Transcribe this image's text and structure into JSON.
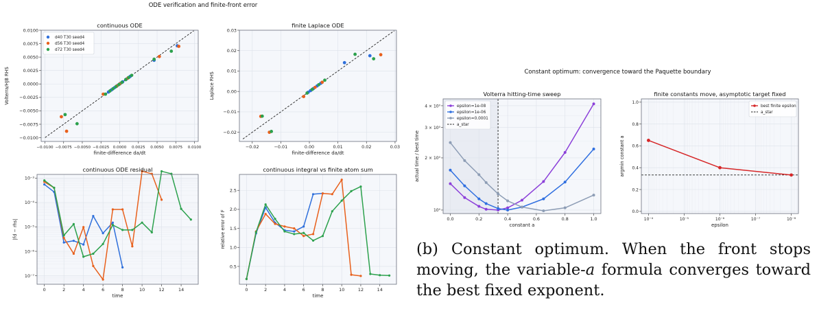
{
  "figure_a_title": "ODE verification and finite-front error",
  "figure_b_title": "Constant optimum: convergence toward the Paquette boundary",
  "caption": {
    "label": "(b)",
    "text_before_var": "Constant optimum. When the front stops moving, the variable-",
    "var": "a",
    "text_after_var": " formula converges toward the best fixed exponent."
  },
  "colors": {
    "blue": "#2e6fdb",
    "orange": "#e8601c",
    "green": "#2ca14d",
    "purple": "#8b3fd9",
    "blue2": "#2f6fe0",
    "gray": "#8d9db5",
    "red": "#d62728",
    "dashed": "#222222"
  },
  "chart_data": [
    {
      "id": "continuous-ode",
      "type": "scatter",
      "title": "continuous ODE",
      "xlabel": "finite-difference da/dt",
      "ylabel": "Volterra/HJB RHS",
      "xlim": [
        -0.0105,
        0.0105
      ],
      "ylim": [
        -0.0107,
        0.01
      ],
      "xticks": [
        -0.01,
        -0.0075,
        -0.005,
        -0.0025,
        0.0,
        0.0025,
        0.005,
        0.0075,
        0.01
      ],
      "xtick_labels": [
        "−0.0100",
        "−0.0075",
        "−0.0050",
        "−0.0025",
        "0.0000",
        "0.0025",
        "0.0050",
        "0.0075",
        "0.0100"
      ],
      "yticks": [
        -0.01,
        -0.0075,
        -0.005,
        -0.0025,
        0.0,
        0.0025,
        0.005,
        0.0075,
        0.01
      ],
      "ytick_labels": [
        "−0.0100",
        "−0.0075",
        "−0.0050",
        "−0.0025",
        "0.0000",
        "0.0025",
        "0.0050",
        "0.0075",
        "0.0100"
      ],
      "reference_line": "y = x",
      "legend": "top-left",
      "series": [
        {
          "name": "d40 T30 seed4",
          "color": "blue",
          "points": [
            [
              0.0077,
              0.0071
            ],
            [
              0.0046,
              0.0044
            ],
            [
              0.0014,
              0.0014
            ],
            [
              0.0009,
              0.0009
            ],
            [
              0.0004,
              0.0004
            ],
            [
              0.0001,
              0.0001
            ],
            [
              -0.0003,
              -0.0003
            ],
            [
              -0.0007,
              -0.0007
            ],
            [
              -0.0011,
              -0.0011
            ],
            [
              -0.0015,
              -0.0015
            ]
          ]
        },
        {
          "name": "d56 T30 seed4",
          "color": "orange",
          "points": [
            [
              0.0079,
              0.007
            ],
            [
              0.0053,
              0.0051
            ],
            [
              -0.0078,
              -0.0061
            ],
            [
              -0.0071,
              -0.0088
            ],
            [
              -0.0022,
              -0.0019
            ],
            [
              0.0011,
              0.0011
            ],
            [
              -0.0004,
              -0.0004
            ],
            [
              0.0,
              0.0
            ]
          ]
        },
        {
          "name": "d72 T30 seed4",
          "color": "green",
          "points": [
            [
              0.0069,
              0.0061
            ],
            [
              0.0046,
              0.0046
            ],
            [
              -0.0073,
              -0.0057
            ],
            [
              -0.0057,
              -0.0074
            ],
            [
              0.0016,
              0.0016
            ],
            [
              0.0012,
              0.0012
            ],
            [
              0.0008,
              0.0008
            ],
            [
              0.0003,
              0.0003
            ],
            [
              -0.0001,
              -0.0001
            ],
            [
              -0.0005,
              -0.0005
            ],
            [
              -0.0009,
              -0.0009
            ],
            [
              -0.0013,
              -0.0013
            ],
            [
              -0.0019,
              -0.0019
            ]
          ]
        }
      ]
    },
    {
      "id": "finite-laplace-ode",
      "type": "scatter",
      "title": "finite Laplace ODE",
      "xlabel": "finite-difference da/dt",
      "ylabel": "Laplace RHS",
      "xlim": [
        -0.0245,
        0.0305
      ],
      "ylim": [
        -0.0245,
        0.03
      ],
      "xticks": [
        -0.02,
        -0.01,
        0.0,
        0.01,
        0.02,
        0.03
      ],
      "xtick_labels": [
        "−0.02",
        "−0.01",
        "0.00",
        "0.01",
        "0.02",
        "0.03"
      ],
      "yticks": [
        -0.02,
        -0.01,
        0.0,
        0.01,
        0.02,
        0.03
      ],
      "ytick_labels": [
        "−0.02",
        "−0.01",
        "0.00",
        "0.01",
        "0.02",
        "0.03"
      ],
      "reference_line": "y = x",
      "series": [
        {
          "name": "d40 T30 seed4",
          "color": "blue",
          "points": [
            [
              0.0212,
              0.0175
            ],
            [
              0.0123,
              0.0141
            ],
            [
              0.004,
              0.004
            ],
            [
              0.0027,
              0.0027
            ],
            [
              0.0014,
              0.0014
            ],
            [
              0.0004,
              0.0004
            ],
            [
              -0.0004,
              -0.0004
            ]
          ]
        },
        {
          "name": "d56 T30 seed4",
          "color": "orange",
          "points": [
            [
              0.025,
              0.018
            ],
            [
              -0.017,
              -0.0122
            ],
            [
              -0.014,
              -0.02
            ],
            [
              -0.002,
              -0.0025
            ],
            [
              0.002,
              0.002
            ],
            [
              0.0045,
              0.0045
            ]
          ]
        },
        {
          "name": "d72 T30 seed4",
          "color": "green",
          "points": [
            [
              0.016,
              0.0182
            ],
            [
              0.0225,
              0.016
            ],
            [
              -0.0165,
              -0.0121
            ],
            [
              -0.0133,
              -0.0196
            ],
            [
              0.0054,
              0.0055
            ],
            [
              0.0033,
              0.0033
            ],
            [
              0.001,
              0.001
            ],
            [
              -0.0008,
              -0.0008
            ]
          ]
        }
      ]
    },
    {
      "id": "continuous-ode-residual",
      "type": "line",
      "title": "continuous ODE residual",
      "xlabel": "time",
      "ylabel": "|fd − rhs|",
      "xscale": "linear",
      "yscale": "log",
      "xlim": [
        -0.75,
        15.75
      ],
      "ylim_log10": [
        -7.35,
        -2.85
      ],
      "xticks": [
        0,
        2,
        4,
        6,
        8,
        10,
        12,
        14
      ],
      "xtick_labels": [
        "0",
        "2",
        "4",
        "6",
        "8",
        "10",
        "12",
        "14"
      ],
      "yticks_log10": [
        -7,
        -6,
        -5,
        -4,
        -3
      ],
      "ytick_labels": [
        "10⁻⁷",
        "10⁻⁶",
        "10⁻⁵",
        "10⁻⁴",
        "10⁻³"
      ],
      "series": [
        {
          "name": "d40 T30 seed4",
          "color": "blue",
          "x": [
            0,
            1,
            2,
            3,
            4,
            5,
            6,
            7,
            8
          ],
          "y": [
            0.00055,
            0.00027,
            2.3e-06,
            2.7e-06,
            1.9e-06,
            2.8e-05,
            5.5e-06,
            1.5e-05,
            2.2e-07
          ]
        },
        {
          "name": "d56 T30 seed4",
          "color": "orange",
          "x": [
            0,
            1,
            2,
            3,
            4,
            5,
            6,
            7,
            8,
            9,
            10,
            11,
            12
          ],
          "y": [
            0.0007,
            0.0004,
            3.5e-06,
            8e-07,
            9.8e-06,
            2.5e-07,
            7e-08,
            5.2e-05,
            5.2e-05,
            1.6e-06,
            0.0019,
            0.0015,
            0.00013
          ]
        },
        {
          "name": "d72 T30 seed4",
          "color": "green",
          "x": [
            0,
            1,
            2,
            3,
            4,
            5,
            6,
            7,
            8,
            9,
            10,
            11,
            12,
            13,
            14,
            15
          ],
          "y": [
            0.0008,
            0.0004,
            4.5e-06,
            1.3e-05,
            6e-07,
            8e-07,
            2e-06,
            1.2e-05,
            7.5e-06,
            7.5e-06,
            1.5e-05,
            6e-06,
            0.0019,
            0.0015,
            5.5e-05,
            2e-05
          ]
        }
      ]
    },
    {
      "id": "integral-vs-atom-sum",
      "type": "line",
      "title": "continuous integral vs finite atom sum",
      "xlabel": "time",
      "ylabel": "relative error of F",
      "xlim": [
        -0.75,
        15.75
      ],
      "ylim": [
        0.03,
        2.92
      ],
      "xticks": [
        0,
        2,
        4,
        6,
        8,
        10,
        12,
        14
      ],
      "xtick_labels": [
        "0",
        "2",
        "4",
        "6",
        "8",
        "10",
        "12",
        "14"
      ],
      "yticks": [
        0.5,
        1.0,
        1.5,
        2.0,
        2.5
      ],
      "ytick_labels": [
        "0.5",
        "1.0",
        "1.5",
        "2.0",
        "2.5"
      ],
      "series": [
        {
          "name": "d40 T30 seed4",
          "color": "blue",
          "x": [
            0,
            1,
            2,
            3,
            4,
            5,
            6,
            7,
            8
          ],
          "y": [
            0.17,
            1.37,
            2.05,
            1.65,
            1.45,
            1.42,
            1.55,
            2.4,
            2.42
          ]
        },
        {
          "name": "d56 T30 seed4",
          "color": "orange",
          "x": [
            0,
            1,
            2,
            3,
            4,
            5,
            6,
            7,
            8,
            9,
            10,
            11,
            12
          ],
          "y": [
            0.17,
            1.42,
            1.88,
            1.62,
            1.55,
            1.5,
            1.3,
            1.35,
            2.42,
            2.4,
            2.78,
            0.28,
            0.25
          ]
        },
        {
          "name": "d72 T30 seed4",
          "color": "green",
          "x": [
            0,
            1,
            2,
            3,
            4,
            5,
            6,
            7,
            8,
            9,
            10,
            11,
            12,
            13,
            14,
            15
          ],
          "y": [
            0.17,
            1.4,
            2.13,
            1.75,
            1.42,
            1.35,
            1.38,
            1.18,
            1.3,
            1.95,
            2.23,
            2.48,
            2.6,
            0.3,
            0.27,
            0.26
          ]
        }
      ]
    },
    {
      "id": "volterra-sweep",
      "type": "line",
      "title": "Volterra hitting-time sweep",
      "xlabel": "constant a",
      "ylabel": "actual time / best time",
      "xscale": "linear",
      "yscale": "log",
      "xlim": [
        -0.05,
        1.05
      ],
      "ylim_log10": [
        -0.0202,
        0.6415
      ],
      "xticks": [
        0.0,
        0.2,
        0.4,
        0.6,
        0.8,
        1.0
      ],
      "xtick_labels": [
        "0.0",
        "0.2",
        "0.4",
        "0.6",
        "0.8",
        "1.0"
      ],
      "yticks": [
        1,
        2,
        3,
        4
      ],
      "ytick_labels": [
        "10⁰",
        "2 × 10⁰",
        "3 × 10⁰",
        "4 × 10⁰"
      ],
      "vline": {
        "x": 0.333,
        "style": "dashed",
        "name": "a_star"
      },
      "shade_left_of_vline": true,
      "legend": "top-left",
      "series": [
        {
          "name": "epsilon=1e-08",
          "color": "purple",
          "x": [
            0.0,
            0.1,
            0.2,
            0.25,
            0.3333,
            0.4,
            0.5,
            0.65,
            0.8,
            1.0
          ],
          "y": [
            1.42,
            1.18,
            1.05,
            1.01,
            1.0,
            1.03,
            1.14,
            1.46,
            2.15,
            4.1
          ]
        },
        {
          "name": "epsilon=1e-06",
          "color": "blue2",
          "x": [
            0.0,
            0.1,
            0.2,
            0.25,
            0.3333,
            0.4,
            0.5,
            0.65,
            0.8,
            1.0
          ],
          "y": [
            1.7,
            1.38,
            1.16,
            1.09,
            1.02,
            1.0,
            1.04,
            1.16,
            1.45,
            2.25
          ]
        },
        {
          "name": "epsilon=0.0001",
          "color": "gray",
          "x": [
            0.0,
            0.1,
            0.2,
            0.25,
            0.3333,
            0.4,
            0.5,
            0.65,
            0.8,
            1.0
          ],
          "y": [
            2.45,
            1.93,
            1.6,
            1.44,
            1.24,
            1.13,
            1.04,
            0.99,
            1.03,
            1.22
          ]
        }
      ]
    },
    {
      "id": "finite-constants",
      "type": "line",
      "title": "finite constants move, asymptotic target fixed",
      "xlabel": "epsilon",
      "ylabel": "argmin constant a",
      "xscale": "log",
      "xaxis_inverted": true,
      "xlim_log10": [
        -3.8,
        -8.2
      ],
      "ylim": [
        -0.02,
        1.03
      ],
      "xticks_log10": [
        -4,
        -5,
        -6,
        -7,
        -8
      ],
      "xtick_labels": [
        "10⁻⁴",
        "10⁻⁵",
        "10⁻⁶",
        "10⁻⁷",
        "10⁻⁸"
      ],
      "yticks": [
        0.0,
        0.2,
        0.4,
        0.6,
        0.8,
        1.0
      ],
      "ytick_labels": [
        "0.0",
        "0.2",
        "0.4",
        "0.6",
        "0.8",
        "1.0"
      ],
      "hline": {
        "y": 0.333,
        "style": "dashed",
        "name": "a_star"
      },
      "legend": "top-right",
      "series": [
        {
          "name": "best finite epsilon",
          "color": "red",
          "x_log10": [
            -4,
            -6,
            -8
          ],
          "y": [
            0.65,
            0.4,
            0.333
          ]
        }
      ]
    }
  ]
}
